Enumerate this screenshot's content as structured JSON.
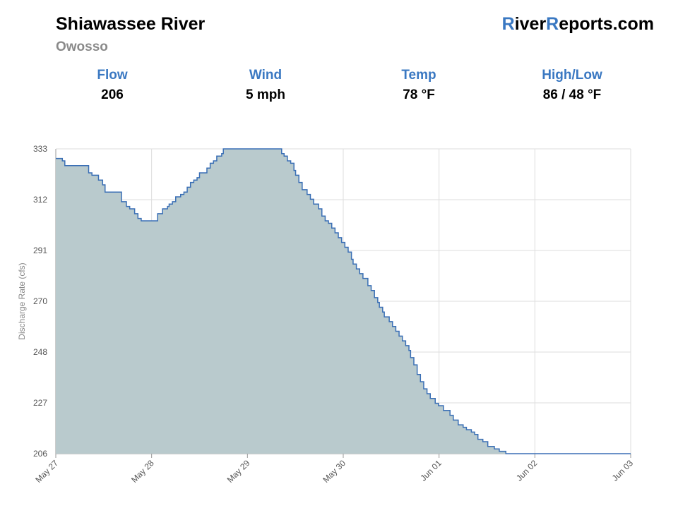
{
  "header": {
    "title": "Shiawassee River",
    "subtitle": "Owosso",
    "brand": {
      "r1": "R",
      "p1": "iver",
      "r2": "R",
      "p2": "eports.com"
    }
  },
  "stats": [
    {
      "label": "Flow",
      "value": "206"
    },
    {
      "label": "Wind",
      "value": "5 mph"
    },
    {
      "label": "Temp",
      "value": "78 °F"
    },
    {
      "label": "High/Low",
      "value": "86 / 48 °F"
    }
  ],
  "colors": {
    "accent": "#3a78c2",
    "fill": "#b9cacd",
    "line": "#3a6fb5",
    "grid": "#dddddd"
  },
  "chart_data": {
    "type": "area",
    "ylabel": "Discharge Rate (cfs)",
    "xlabel": "",
    "ylim": [
      206,
      333
    ],
    "xlim": [
      0,
      7
    ],
    "grid": true,
    "y_ticks": [
      "333",
      "312",
      "291",
      "270",
      "248",
      "227",
      "206"
    ],
    "x_ticks": [
      "May 27",
      "May 28",
      "May 29",
      "May 30",
      "Jun 01",
      "Jun 02",
      "Jun 03"
    ],
    "series": [
      {
        "x": [
          0,
          0.08,
          0.11,
          0.4,
          0.44,
          0.52,
          0.57,
          0.6,
          0.65,
          0.8,
          0.86,
          0.9,
          0.96,
          1.0,
          1.04,
          1.08,
          1.12,
          1.16,
          1.24,
          1.3,
          1.36,
          1.38,
          1.42,
          1.46,
          1.52,
          1.56,
          1.6,
          1.64,
          1.68,
          1.72,
          1.75,
          1.84,
          1.88,
          1.92,
          1.96,
          2.02,
          2.04,
          2.08,
          2.12,
          2.16,
          2.2,
          2.26,
          2.32,
          2.36,
          2.4,
          2.45,
          2.5,
          2.55,
          2.6,
          2.64,
          2.68,
          2.7,
          2.72,
          2.75,
          2.78,
          2.82,
          2.86,
          2.9,
          2.92,
          2.96,
          3.0,
          3.06,
          3.1,
          3.14,
          3.2,
          3.24,
          3.28,
          3.32,
          3.36,
          3.4,
          3.44,
          3.48,
          3.52,
          3.56,
          3.6,
          3.62,
          3.66,
          3.7,
          3.74,
          3.8,
          3.84,
          3.88,
          3.92,
          3.94,
          3.98,
          4.0,
          4.06,
          4.1,
          4.14,
          4.18,
          4.22,
          4.26,
          4.3,
          4.32,
          4.36,
          4.4,
          4.44,
          4.48,
          4.52,
          4.56,
          4.62,
          4.66,
          4.72,
          4.8,
          4.84,
          4.9,
          4.96,
          5.0,
          5.06,
          5.1,
          5.14,
          5.2,
          5.26,
          5.34,
          5.4,
          5.48,
          5.56,
          5.62,
          5.7,
          5.76,
          5.82,
          5.86,
          5.9,
          6.0
        ],
        "values": [
          329,
          328,
          326,
          323,
          322,
          320,
          318,
          315,
          315,
          311,
          309,
          308,
          306,
          304,
          303,
          303,
          303,
          303,
          306,
          308,
          309,
          310,
          311,
          313,
          314,
          315,
          317,
          319,
          320,
          321,
          323,
          325,
          327,
          328,
          330,
          331,
          333,
          333,
          333,
          333,
          333,
          333,
          333,
          333,
          333,
          333,
          333,
          333,
          333,
          333,
          333,
          333,
          333,
          331,
          330,
          328,
          327,
          324,
          322,
          319,
          316,
          314,
          312,
          310,
          308,
          305,
          303,
          302,
          300,
          298,
          296,
          294,
          292,
          290,
          287,
          285,
          283,
          281,
          279,
          276,
          274,
          271,
          269,
          267,
          265,
          263,
          261,
          259,
          257,
          255,
          253,
          251,
          249,
          246,
          243,
          239,
          236,
          233,
          231,
          229,
          227,
          226,
          224,
          222,
          220,
          218,
          217,
          216,
          215,
          214,
          212,
          211,
          209,
          208,
          207,
          206,
          206,
          206,
          206,
          206,
          206,
          206,
          206,
          206
        ]
      }
    ]
  }
}
